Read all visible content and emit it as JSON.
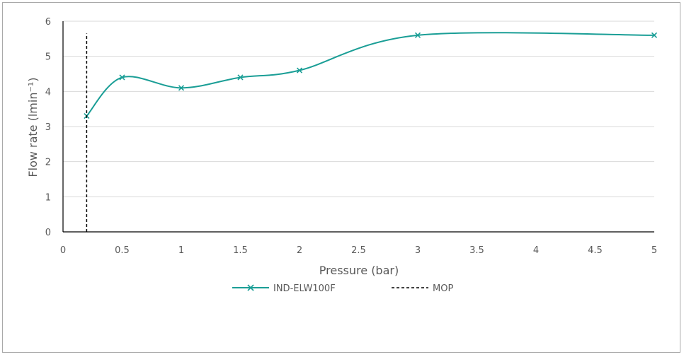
{
  "chart_data": {
    "type": "line",
    "title": "",
    "xlabel": "Pressure (bar)",
    "ylabel": "Flow rate (lmin⁻¹)",
    "xlim": [
      0,
      5
    ],
    "ylim": [
      0,
      6
    ],
    "x_ticks": [
      "0",
      "0.5",
      "1",
      "1.5",
      "2",
      "2.5",
      "3",
      "3.5",
      "4",
      "4.5",
      "5"
    ],
    "y_ticks": [
      "0",
      "1",
      "2",
      "3",
      "4",
      "5",
      "6"
    ],
    "grid": "horizontal",
    "legend_position": "bottom",
    "series": [
      {
        "name": "IND-ELW100F",
        "color": "#1a9e96",
        "marker": "x",
        "smooth": true,
        "x": [
          0.2,
          0.5,
          1,
          1.5,
          2,
          3,
          5
        ],
        "y": [
          3.3,
          4.4,
          4.1,
          4.4,
          4.6,
          5.6,
          5.6
        ]
      },
      {
        "name": "MOP",
        "color": "#000000",
        "style": "dashed",
        "x": [
          0.2,
          0.2
        ],
        "y": [
          0,
          5.65
        ]
      }
    ]
  }
}
